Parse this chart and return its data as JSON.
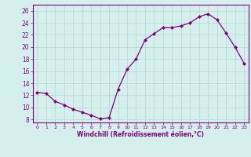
{
  "x": [
    0,
    1,
    2,
    3,
    4,
    5,
    6,
    7,
    8,
    9,
    10,
    11,
    12,
    13,
    14,
    15,
    16,
    17,
    18,
    19,
    20,
    21,
    22,
    23
  ],
  "y": [
    12.5,
    12.3,
    11.0,
    10.4,
    9.7,
    9.2,
    8.7,
    8.1,
    8.3,
    13.0,
    16.3,
    18.0,
    21.2,
    22.2,
    23.2,
    23.2,
    23.5,
    24.0,
    25.0,
    25.5,
    24.5,
    22.3,
    20.0,
    17.3
  ],
  "line_color": "#800080",
  "marker": "D",
  "marker_size": 2.0,
  "line_width": 0.9,
  "bg_color": "#d5f0ec",
  "grid_color": "#b0d8d0",
  "xlabel": "Windchill (Refroidissement éolien,°C)",
  "xlabel_color": "#800080",
  "ylabel_ticks": [
    8,
    10,
    12,
    14,
    16,
    18,
    20,
    22,
    24,
    26
  ],
  "xtick_labels": [
    "0",
    "1",
    "2",
    "3",
    "4",
    "5",
    "6",
    "7",
    "8",
    "9",
    "10",
    "11",
    "12",
    "13",
    "14",
    "15",
    "16",
    "17",
    "18",
    "19",
    "20",
    "21",
    "22",
    "23"
  ],
  "ylim": [
    7.5,
    27.0
  ],
  "xlim": [
    -0.5,
    23.5
  ],
  "tick_color": "#800080",
  "axis_color": "#800080",
  "ylabel_fontsize": 5.5,
  "xlabel_fontsize": 5.5,
  "xtick_fontsize": 4.5,
  "ytick_fontsize": 5.5
}
